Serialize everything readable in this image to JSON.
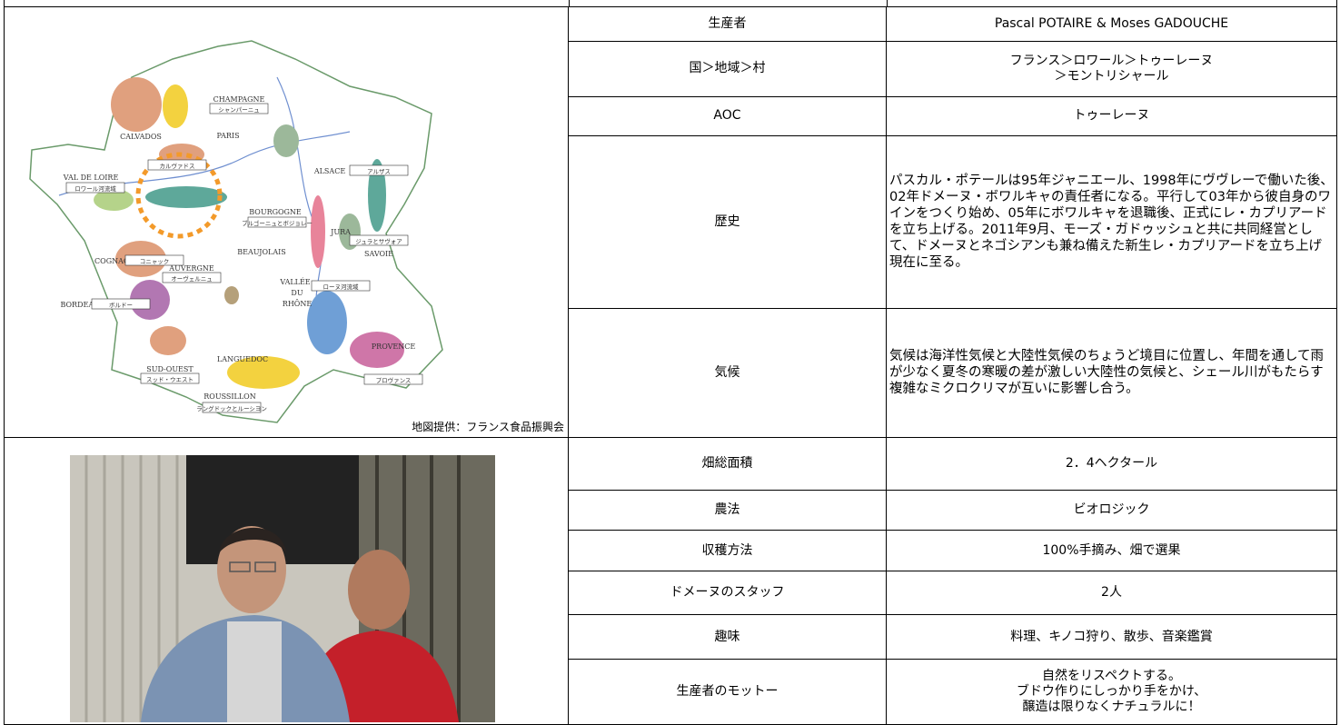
{
  "map": {
    "labels": [
      "CHAMPAGNE",
      "シャンパーニュ",
      "CALVADOS",
      "カルヴァドス",
      "PARIS",
      "ALSACE",
      "アルザス",
      "VAL DE LOIRE",
      "ロワール河流域",
      "BOURGOGNE",
      "ブルゴーニュとボジョレー",
      "JURA",
      "ジュラとサヴォア",
      "SAVOIE",
      "BEAUJOLAIS",
      "COGNAC",
      "コニャック",
      "AUVERGNE",
      "オーヴェルニュ",
      "VALLÉE",
      "DU",
      "RHÔNE",
      "ローヌ河流域",
      "BORDEAUX",
      "ボルドー",
      "LANGUEDOC",
      "PROVENCE",
      "プロヴァンス",
      "SUD-OUEST",
      "スッド・ウエスト",
      "ROUSSILLON",
      "ラングドックとルーシヨン"
    ],
    "caption": "地図提供：フランス食品振興会"
  },
  "table": {
    "rows": [
      [
        "生産者",
        "Pascal POTAIRE & Moses GADOUCHE"
      ],
      [
        "国＞地域＞村",
        "フランス＞ロワール＞トゥーレーヌ\n＞モントリシャール"
      ],
      [
        "AOC",
        "トゥーレーヌ"
      ],
      [
        "歴史",
        "パスカル・ポテールは95年ジャニエール、1998年にヴヴレーで働いた後、02年ドメーヌ・ボワルキャの責任者になる。平行して03年から彼自身のワインをつくり始め、05年にボワルキャを退職後、正式にレ・カプリアードを立ち上げる。2011年9月、モーズ・ガドゥッシュと共に共同経営として、ドメーヌとネゴシアンも兼ね備えた新生レ・カプリアードを立ち上げ現在に至る。"
      ],
      [
        "気候",
        "気候は海洋性気候と大陸性気候のちょうど境目に位置し、年間を通して雨が少なく夏冬の寒暖の差が激しい大陸性の気候と、シェール川がもたらす複雑なミクロクリマが互いに影響し合う。"
      ],
      [
        "畑総面積",
        "2．4ヘクタール"
      ],
      [
        "農法",
        "ビオロジック"
      ],
      [
        "収穫方法",
        "100%手摘み、畑で選果"
      ],
      [
        "ドメーヌのスタッフ",
        "2人"
      ],
      [
        "趣味",
        "料理、キノコ狩り、散歩、音楽鑑賞"
      ],
      [
        "生産者のモットー",
        "自然をリスペクトする。\nブドウ作りにしっかり手をかけ、\n醸造は限りなくナチュラルに！"
      ]
    ]
  }
}
